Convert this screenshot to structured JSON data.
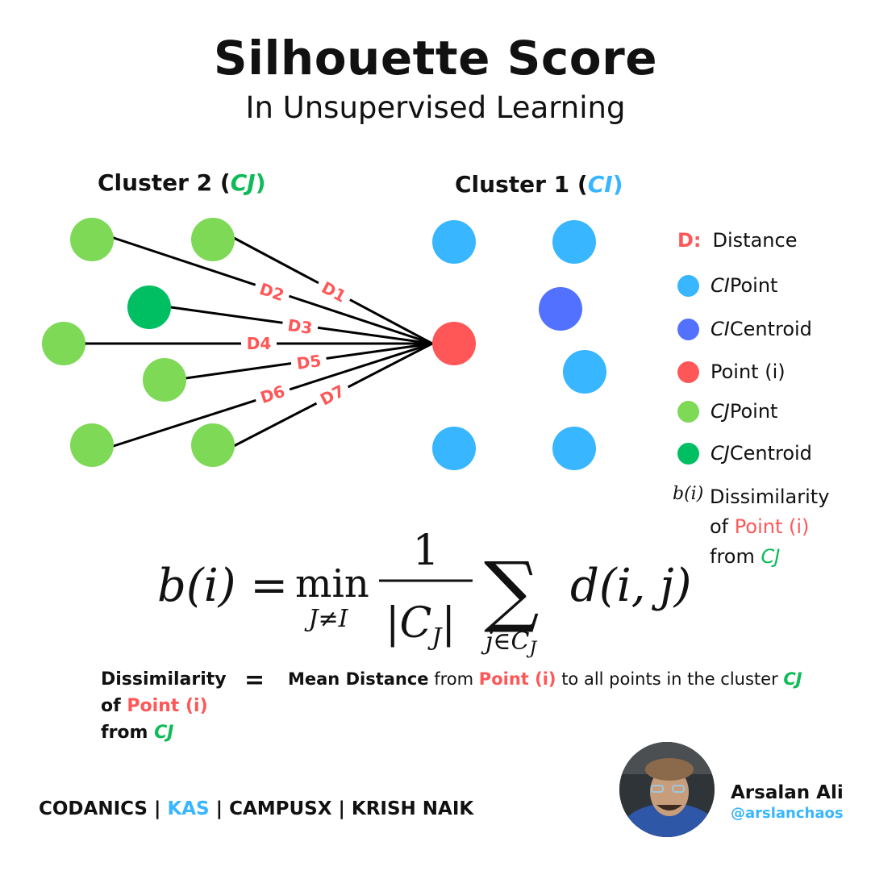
{
  "title": "Silhouette Score",
  "subtitle": "In Unsupervised Learning",
  "clusters": {
    "cluster2": {
      "label": "Cluster 2 (",
      "tag": "CJ",
      "close": ")"
    },
    "cluster1": {
      "label": "Cluster 1 (",
      "tag": "CI",
      "close": ")"
    }
  },
  "distances": [
    "D1",
    "D2",
    "D3",
    "D4",
    "D5",
    "D6",
    "D7"
  ],
  "colors": {
    "ci_point": "#38b6ff",
    "ci_centroid": "#5271ff",
    "point_i": "#ff5757",
    "cj_point": "#7ed957",
    "cj_centroid": "#00bf63",
    "label_red": "#ff5757",
    "label_green": "#0dbb57",
    "label_blue": "#38b6ff"
  },
  "legend": {
    "distance_key": "D:",
    "distance_label": "Distance",
    "ci_point_tag": "CI",
    "ci_point_label": " Point",
    "ci_centroid_tag": "CI",
    "ci_centroid_label": " Centroid",
    "point_i_label": "Point (i)",
    "cj_point_tag": "CJ",
    "cj_point_label": " Point",
    "cj_centroid_tag": "CJ",
    "cj_centroid_label": " Centroid",
    "b_symbol": "b(i)",
    "b_line1": "Dissimilarity",
    "b_line2a": "of ",
    "b_line2b": "Point (i)",
    "b_line3a": "from ",
    "b_line3b": "CJ"
  },
  "formula": {
    "lhs": "b(i) =",
    "min": "min",
    "min_sub": "J≠I",
    "numerator": "1",
    "denominator": "|C",
    "den_sub": "J",
    "den_close": "|",
    "sigma": "∑",
    "sum_sub": "j∈C",
    "sum_sub_j": "J",
    "term": "d(i, j)"
  },
  "explanation": {
    "left_line1": "Dissimilarity",
    "left_line2a": "of ",
    "left_line2b": "Point (i)",
    "left_line3a": "from ",
    "left_line3b": "CJ",
    "equals": "=",
    "right_bold": "Mean Distance",
    "right_t1": " from ",
    "right_point": "Point (i)",
    "right_t2": " to all points in the cluster ",
    "right_cj": "CJ"
  },
  "footer": {
    "brand1": "CODANICS",
    "sep1": " | ",
    "brand2": "KAS",
    "sep2": " | ",
    "brand3": "CAMPUSX",
    "sep3": " | ",
    "brand4": "KRISH NAIK"
  },
  "author": {
    "name": "Arsalan Ali",
    "handle": "@arslanchaos"
  }
}
